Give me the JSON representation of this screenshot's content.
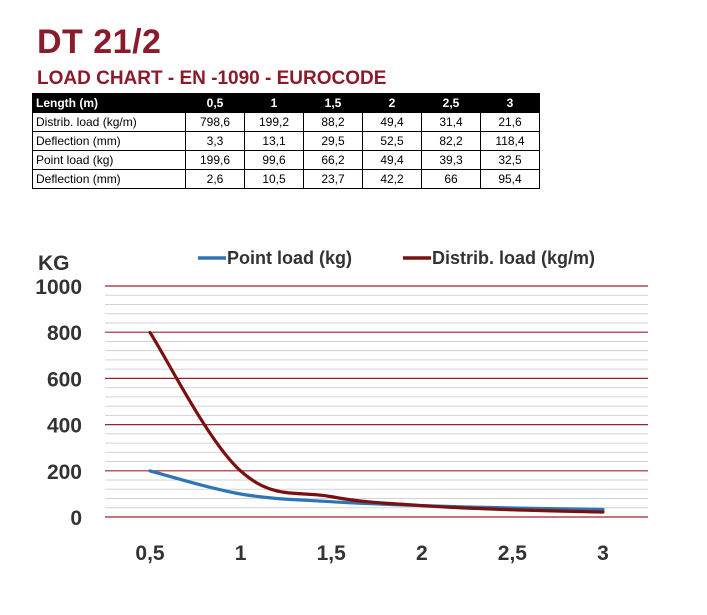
{
  "title": "DT 21/2",
  "subtitle": "LOAD CHART - EN -1090 - EUROCODE",
  "table": {
    "header": [
      "Length (m)",
      "0,5",
      "1",
      "1,5",
      "2",
      "2,5",
      "3"
    ],
    "rows": [
      [
        "Distrib. load (kg/m)",
        "798,6",
        "199,2",
        "88,2",
        "49,4",
        "31,4",
        "21,6"
      ],
      [
        "Deflection (mm)",
        "3,3",
        "13,1",
        "29,5",
        "52,5",
        "82,2",
        "118,4"
      ],
      [
        "Point load (kg)",
        "199,6",
        "99,6",
        "66,2",
        "49,4",
        "39,3",
        "32,5"
      ],
      [
        "Deflection (mm)",
        "2,6",
        "10,5",
        "23,7",
        "42,2",
        "66",
        "95,4"
      ]
    ]
  },
  "chart_data": {
    "type": "line",
    "ylabel": "KG",
    "xlabel": "",
    "x": [
      0.5,
      1,
      1.5,
      2,
      2.5,
      3
    ],
    "x_tick_labels": [
      "0,5",
      "1",
      "1,5",
      "2",
      "2,5",
      "3"
    ],
    "y_tick_labels": [
      "1000",
      "800",
      "600",
      "400",
      "200",
      "0"
    ],
    "y_ticks": [
      1000,
      800,
      600,
      400,
      200,
      0
    ],
    "ylim": [
      0,
      1000
    ],
    "xlim": [
      0.5,
      3
    ],
    "legend_placement": "top",
    "series": [
      {
        "name": "Point load (kg)",
        "color": "#2e75b6",
        "values": [
          199.6,
          99.6,
          66.2,
          49.4,
          39.3,
          32.5
        ]
      },
      {
        "name": "Distrib. load (kg/m)",
        "color": "#7b1010",
        "values": [
          798.6,
          199.2,
          88.2,
          49.4,
          31.4,
          21.6
        ]
      }
    ],
    "colors": {
      "major_grid": "#a0202e",
      "minor_grid": "#d3d3d3"
    }
  }
}
